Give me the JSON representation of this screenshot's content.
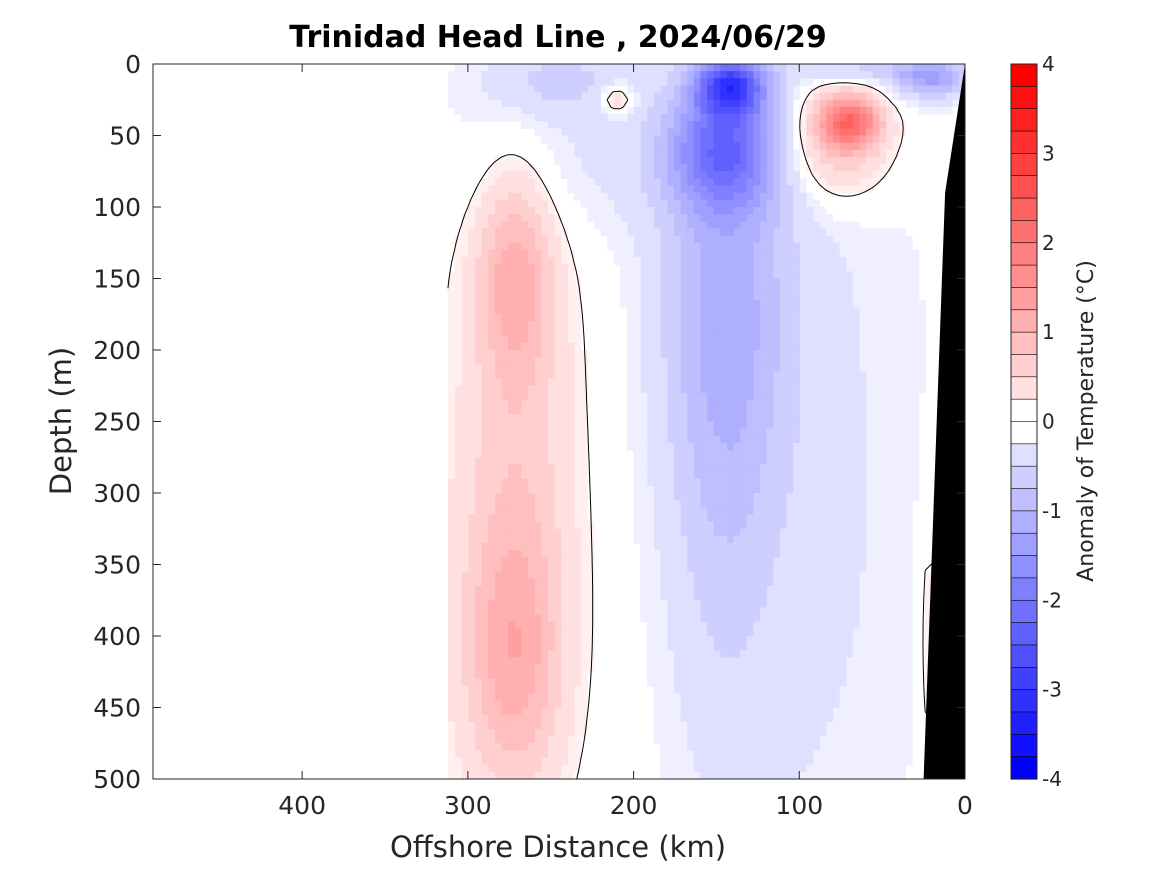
{
  "chart_data": {
    "type": "heatmap",
    "subtype": "filled-contour section",
    "title": "Trinidad Head Line , 2024/06/29",
    "xlabel": "Offshore Distance (km)",
    "ylabel": "Depth (m)",
    "x_axis": {
      "range": [
        490,
        0
      ],
      "reversed": true,
      "ticks": [
        400,
        300,
        200,
        100,
        0
      ],
      "tick_labels": [
        "400",
        "300",
        "200",
        "100",
        "0"
      ]
    },
    "y_axis": {
      "range": [
        0,
        500
      ],
      "reversed": true,
      "ticks": [
        0,
        50,
        100,
        150,
        200,
        250,
        300,
        350,
        400,
        450,
        500
      ],
      "tick_labels": [
        "0",
        "50",
        "100",
        "150",
        "200",
        "250",
        "300",
        "350",
        "400",
        "450",
        "500"
      ]
    },
    "colorbar": {
      "label": "Anomaly of Temperature (°C)",
      "range": [
        -4,
        4
      ],
      "step": 0.25,
      "ticks": [
        4,
        3,
        2,
        1,
        0,
        -1,
        -2,
        -3,
        -4
      ],
      "tick_labels": [
        "4",
        "3",
        "2",
        "1",
        "0",
        "-1",
        "-2",
        "-3",
        "-4"
      ],
      "neg_color": "#0000ff",
      "pos_color": "#ff0000",
      "zero_color": "#ffffff"
    },
    "data_extent_km": [
      0,
      312
    ],
    "seafloor_color": "#000000",
    "grid": false,
    "features": [
      {
        "kind": "blob",
        "x": 272,
        "y": 145,
        "rx": 22,
        "ry": 70,
        "value": 0.9
      },
      {
        "kind": "blob",
        "x": 270,
        "y": 230,
        "rx": 35,
        "ry": 150,
        "value": 0.45
      },
      {
        "kind": "blob",
        "x": 272,
        "y": 420,
        "rx": 28,
        "ry": 90,
        "value": 0.75
      },
      {
        "kind": "blob",
        "x": 275,
        "y": 380,
        "rx": 38,
        "ry": 140,
        "value": 0.45
      },
      {
        "kind": "blob",
        "x": 70,
        "y": 40,
        "rx": 18,
        "ry": 18,
        "value": 1.9
      },
      {
        "kind": "blob",
        "x": 78,
        "y": 55,
        "rx": 32,
        "ry": 40,
        "value": 0.9
      },
      {
        "kind": "blob",
        "x": 210,
        "y": 25,
        "rx": 10,
        "ry": 10,
        "value": 0.8
      },
      {
        "kind": "blob",
        "x": 22,
        "y": 400,
        "rx": 6,
        "ry": 100,
        "value": 0.35
      },
      {
        "kind": "blob",
        "x": 142,
        "y": 15,
        "rx": 20,
        "ry": 20,
        "value": -2.4
      },
      {
        "kind": "blob",
        "x": 145,
        "y": 60,
        "rx": 32,
        "ry": 40,
        "value": -1.6
      },
      {
        "kind": "blob",
        "x": 145,
        "y": 160,
        "rx": 40,
        "ry": 140,
        "value": -0.75
      },
      {
        "kind": "blob",
        "x": 148,
        "y": 300,
        "rx": 35,
        "ry": 200,
        "value": -0.4
      },
      {
        "kind": "blob",
        "x": 20,
        "y": 10,
        "rx": 22,
        "ry": 14,
        "value": -1.2
      },
      {
        "kind": "blob",
        "x": 60,
        "y": 5,
        "rx": 40,
        "ry": 8,
        "value": -0.6
      },
      {
        "kind": "blob",
        "x": 250,
        "y": 10,
        "rx": 45,
        "ry": 25,
        "value": -0.5
      },
      {
        "kind": "blob",
        "x": 95,
        "y": 300,
        "rx": 80,
        "ry": 380,
        "value": -0.3
      },
      {
        "kind": "blob",
        "x": 230,
        "y": 60,
        "rx": 90,
        "ry": 60,
        "value": -0.3
      }
    ]
  }
}
